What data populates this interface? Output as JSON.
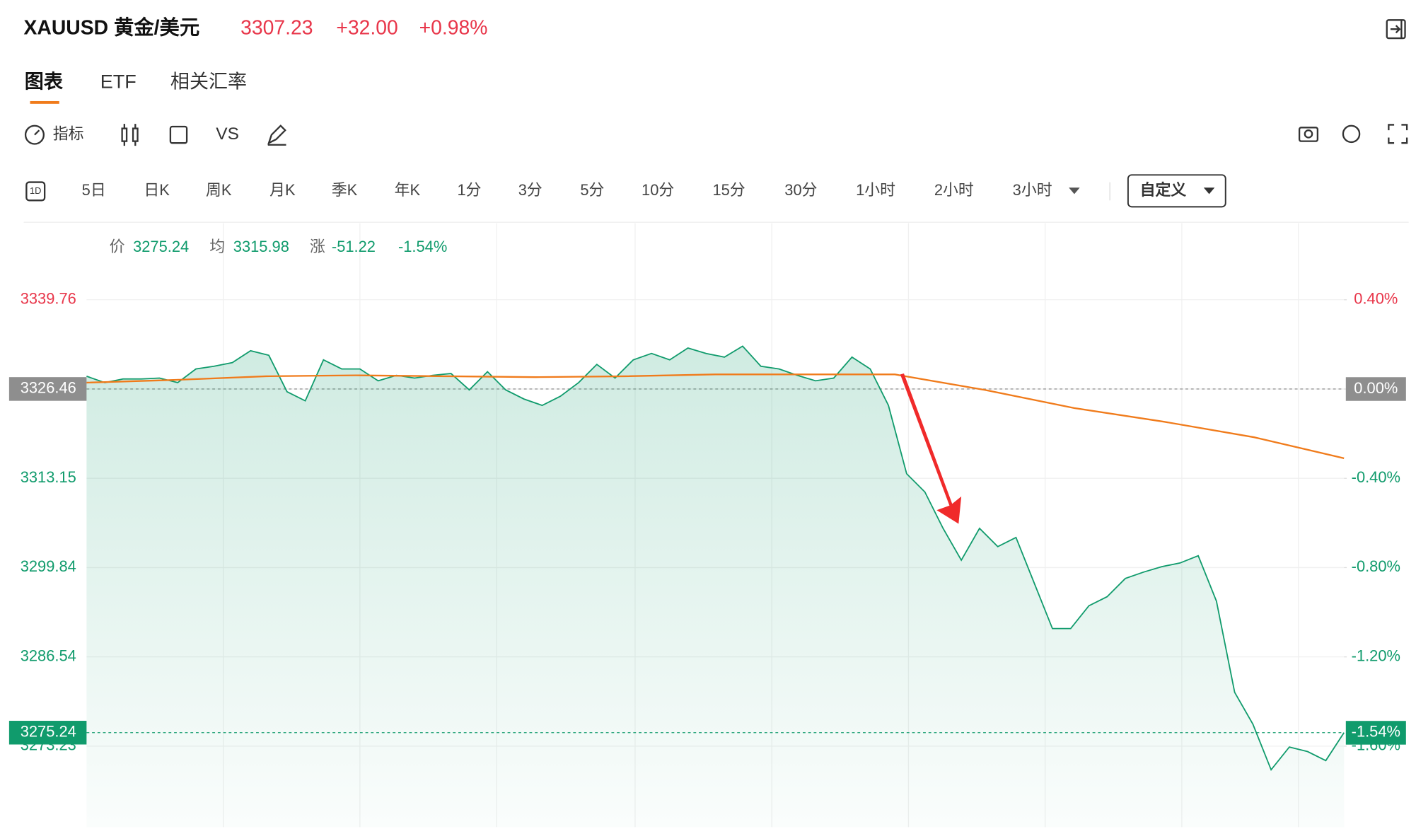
{
  "header": {
    "symbol": "XAUUSD 黄金/美元",
    "price": "3307.23",
    "change": "+32.00",
    "change_pct": "+0.98%"
  },
  "tabs": [
    "图表",
    "ETF",
    "相关汇率"
  ],
  "toolbar": {
    "indicator": "指标",
    "compare": "VS"
  },
  "period_icon": "1D",
  "periods": [
    "5日",
    "日K",
    "周K",
    "月K",
    "季K",
    "年K",
    "1分",
    "3分",
    "5分",
    "10分",
    "15分",
    "30分",
    "1小时",
    "2小时",
    "3小时"
  ],
  "custom": "自定义",
  "info": {
    "price_label": "价",
    "price": "3275.24",
    "avg_label": "均",
    "avg": "3315.98",
    "change_label": "涨",
    "change": "-51.22",
    "change_pct": "-1.54%"
  },
  "chart_data": {
    "type": "line",
    "series": [
      {
        "name": "价",
        "color": "#109b6c",
        "values": [
          3328.36,
          3327.41,
          3327.95,
          3327.95,
          3328.09,
          3327.41,
          3329.45,
          3329.85,
          3330.4,
          3332.16,
          3331.48,
          3326.05,
          3324.69,
          3330.8,
          3329.45,
          3329.45,
          3327.68,
          3328.5,
          3328.09,
          3328.5,
          3328.77,
          3326.32,
          3329.04,
          3326.32,
          3324.97,
          3324.02,
          3325.37,
          3327.41,
          3330.13,
          3328.09,
          3330.8,
          3331.76,
          3330.8,
          3332.57,
          3331.76,
          3331.21,
          3332.84,
          3329.85,
          3329.45,
          3328.5,
          3327.68,
          3328.09,
          3331.21,
          3329.45,
          3324.02,
          3313.83,
          3311.12,
          3305.69,
          3300.94,
          3305.69,
          3302.97,
          3304.33,
          3297.54,
          3290.75,
          3290.75,
          3294.15,
          3295.5,
          3298.22,
          3299.17,
          3299.98,
          3300.53,
          3301.61,
          3294.83,
          3281.25,
          3276.5,
          3269.71,
          3273.1,
          3272.42,
          3271.07,
          3275.24
        ]
      },
      {
        "name": "均",
        "color": "#f07b1b",
        "values": [
          3327.41,
          3327.82,
          3328.36,
          3328.5,
          3328.36,
          3328.23,
          3328.36,
          3328.63,
          3328.63,
          3328.63,
          3326.32,
          3323.61,
          3321.57,
          3319.26,
          3316.14
        ]
      }
    ],
    "ylim": [
      3261.15,
      3351.17
    ],
    "yticks": [
      3339.76,
      3326.46,
      3313.15,
      3299.84,
      3286.54,
      3273.23
    ],
    "y2lim": [
      -1.963,
      0.743
    ],
    "y2ticks": [
      {
        "value": 0.4,
        "label": "0.40%"
      },
      {
        "value": 0,
        "label": "0.00%"
      },
      {
        "value": -0.4,
        "label": "-0.40%"
      },
      {
        "value": -0.8,
        "label": "-0.80%"
      },
      {
        "value": -1.2,
        "label": "-1.20%"
      },
      {
        "value": -1.6,
        "label": "-1.60%"
      }
    ],
    "baseline": 3326.46,
    "last_price": 3275.24,
    "last_pct": {
      "value": -1.54,
      "label": "-1.54%"
    },
    "grid": true
  }
}
